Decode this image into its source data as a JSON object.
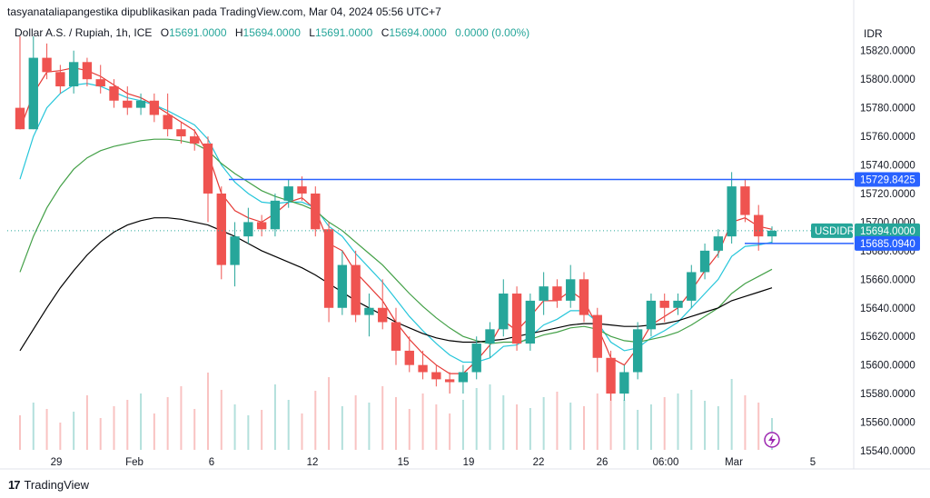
{
  "attribution": "tasyanataliapangestika dipublikasikan pada TradingView.com, Mar 04, 2024 05:56 UTC+7",
  "legend": {
    "symbol": "Dollar A.S. / Rupiah, 1h, ICE",
    "o_label": "O",
    "o_value": "15691.0000",
    "h_label": "H",
    "h_value": "15694.0000",
    "l_label": "L",
    "l_value": "15691.0000",
    "c_label": "C",
    "c_value": "15694.0000",
    "change": "0.0000 (0.00%)"
  },
  "currency": "IDR",
  "footer": {
    "brand": "TradingView",
    "logo": "tradingview-logo"
  },
  "colors": {
    "up": "#26a69a",
    "down": "#ef5350",
    "ma_red": "#e53935",
    "ma_cyan": "#26c6da",
    "ma_green": "#43a047",
    "ma_black": "#000000",
    "hline": "#2962ff"
  },
  "chart_data": {
    "type": "line",
    "title": "Dollar A.S. / Rupiah, 1h, ICE",
    "ylim": [
      15540,
      15830
    ],
    "y_ticks": [
      "15820.0000",
      "15800.0000",
      "15780.0000",
      "15760.0000",
      "15740.0000",
      "15720.0000",
      "15700.0000",
      "15680.0000",
      "15660.0000",
      "15640.0000",
      "15620.0000",
      "15600.0000",
      "15580.0000",
      "15560.0000",
      "15540.0000"
    ],
    "x_ticks": [
      "29",
      "Feb",
      "6",
      "12",
      "15",
      "19",
      "22",
      "26",
      "06:00",
      "Mar",
      "5"
    ],
    "price_labels": {
      "resistance": {
        "value": 15729.8425,
        "text": "15729.8425"
      },
      "current": {
        "name": "USDIDR",
        "value": 15694.0,
        "text": "15694.0000"
      },
      "support": {
        "value": 15685.094,
        "text": "15685.0940"
      }
    },
    "candles": [
      [
        15780,
        15830,
        15765,
        15765
      ],
      [
        15765,
        15830,
        15765,
        15815
      ],
      [
        15815,
        15825,
        15800,
        15805
      ],
      [
        15805,
        15810,
        15790,
        15795
      ],
      [
        15795,
        15820,
        15790,
        15812
      ],
      [
        15812,
        15815,
        15795,
        15800
      ],
      [
        15800,
        15810,
        15790,
        15795
      ],
      [
        15795,
        15800,
        15780,
        15785
      ],
      [
        15785,
        15795,
        15775,
        15780
      ],
      [
        15780,
        15790,
        15775,
        15785
      ],
      [
        15785,
        15790,
        15770,
        15775
      ],
      [
        15775,
        15790,
        15760,
        15765
      ],
      [
        15765,
        15770,
        15755,
        15760
      ],
      [
        15760,
        15765,
        15750,
        15755
      ],
      [
        15755,
        15760,
        15700,
        15720
      ],
      [
        15720,
        15725,
        15660,
        15670
      ],
      [
        15670,
        15700,
        15655,
        15690
      ],
      [
        15690,
        15710,
        15685,
        15700
      ],
      [
        15700,
        15705,
        15690,
        15695
      ],
      [
        15695,
        15720,
        15690,
        15715
      ],
      [
        15715,
        15730,
        15710,
        15725
      ],
      [
        15725,
        15732,
        15715,
        15720
      ],
      [
        15720,
        15725,
        15690,
        15695
      ],
      [
        15695,
        15700,
        15630,
        15640
      ],
      [
        15640,
        15680,
        15635,
        15670
      ],
      [
        15670,
        15680,
        15630,
        15635
      ],
      [
        15635,
        15650,
        15620,
        15640
      ],
      [
        15640,
        15660,
        15625,
        15630
      ],
      [
        15630,
        15640,
        15600,
        15610
      ],
      [
        15610,
        15620,
        15595,
        15600
      ],
      [
        15600,
        15610,
        15590,
        15595
      ],
      [
        15595,
        15600,
        15585,
        15590
      ],
      [
        15590,
        15595,
        15580,
        15588
      ],
      [
        15588,
        15600,
        15580,
        15595
      ],
      [
        15595,
        15620,
        15590,
        15615
      ],
      [
        15615,
        15630,
        15605,
        15625
      ],
      [
        15625,
        15660,
        15620,
        15650
      ],
      [
        15650,
        15655,
        15610,
        15615
      ],
      [
        15615,
        15650,
        15610,
        15645
      ],
      [
        15645,
        15665,
        15635,
        15655
      ],
      [
        15655,
        15660,
        15640,
        15645
      ],
      [
        15645,
        15670,
        15640,
        15660
      ],
      [
        15660,
        15665,
        15630,
        15635
      ],
      [
        15635,
        15640,
        15595,
        15605
      ],
      [
        15605,
        15610,
        15575,
        15580
      ],
      [
        15580,
        15600,
        15575,
        15595
      ],
      [
        15595,
        15630,
        15590,
        15625
      ],
      [
        15625,
        15650,
        15620,
        15645
      ],
      [
        15645,
        15650,
        15630,
        15640
      ],
      [
        15640,
        15650,
        15635,
        15645
      ],
      [
        15645,
        15670,
        15640,
        15665
      ],
      [
        15665,
        15685,
        15660,
        15680
      ],
      [
        15680,
        15695,
        15675,
        15690
      ],
      [
        15690,
        15735,
        15685,
        15725
      ],
      [
        15725,
        15730,
        15700,
        15705
      ],
      [
        15705,
        15712,
        15680,
        15690
      ],
      [
        15690,
        15697,
        15685,
        15694
      ]
    ],
    "series": [
      {
        "ma": "fast",
        "color": "#e53935",
        "values": [
          15765,
          15790,
          15805,
          15806,
          15808,
          15806,
          15802,
          15796,
          15790,
          15787,
          15782,
          15776,
          15770,
          15764,
          15748,
          15720,
          15708,
          15703,
          15700,
          15706,
          15714,
          15717,
          15709,
          15685,
          15680,
          15665,
          15655,
          15645,
          15630,
          15618,
          15608,
          15600,
          15594,
          15594,
          15603,
          15614,
          15631,
          15624,
          15634,
          15645,
          15645,
          15652,
          15645,
          15627,
          15605,
          15600,
          15612,
          15628,
          15634,
          15640,
          15652,
          15666,
          15678,
          15700,
          15703,
          15697,
          15695
        ]
      },
      {
        "ma": "mid",
        "color": "#26c6da",
        "values": [
          15730,
          15760,
          15780,
          15790,
          15796,
          15797,
          15795,
          15791,
          15787,
          15785,
          15782,
          15778,
          15773,
          15768,
          15758,
          15740,
          15728,
          15720,
          15714,
          15713,
          15714,
          15714,
          15710,
          15697,
          15690,
          15678,
          15668,
          15658,
          15646,
          15634,
          15624,
          15615,
          15607,
          15602,
          15602,
          15605,
          15613,
          15614,
          15620,
          15628,
          15632,
          15638,
          15638,
          15630,
          15616,
          15610,
          15612,
          15619,
          15624,
          15630,
          15640,
          15650,
          15660,
          15676,
          15683,
          15684,
          15686
        ]
      },
      {
        "ma": "slow",
        "color": "#43a047",
        "values": [
          15665,
          15690,
          15710,
          15725,
          15737,
          15745,
          15750,
          15753,
          15755,
          15757,
          15758,
          15758,
          15757,
          15755,
          15750,
          15741,
          15734,
          15728,
          15722,
          15718,
          15715,
          15712,
          15708,
          15700,
          15694,
          15686,
          15678,
          15670,
          15660,
          15650,
          15641,
          15633,
          15626,
          15620,
          15617,
          15615,
          15616,
          15616,
          15618,
          15621,
          15623,
          15626,
          15627,
          15625,
          15620,
          15617,
          15616,
          15618,
          15620,
          15623,
          15628,
          15634,
          15640,
          15650,
          15657,
          15662,
          15667
        ]
      },
      {
        "ma": "long",
        "color": "#000000",
        "values": [
          15610,
          15625,
          15640,
          15654,
          15666,
          15677,
          15686,
          15693,
          15698,
          15701,
          15703,
          15703,
          15702,
          15700,
          15698,
          15694,
          15690,
          15685,
          15680,
          15676,
          15672,
          15668,
          15663,
          15657,
          15651,
          15645,
          15640,
          15635,
          15630,
          15626,
          15622,
          15619,
          15617,
          15616,
          15616,
          15617,
          15618,
          15620,
          15622,
          15624,
          15626,
          15628,
          15629,
          15629,
          15628,
          15627,
          15627,
          15628,
          15629,
          15631,
          15634,
          15637,
          15640,
          15645,
          15648,
          15651,
          15654
        ]
      }
    ],
    "volume": [
      38,
      52,
      45,
      30,
      42,
      60,
      35,
      48,
      55,
      62,
      40,
      58,
      70,
      45,
      85,
      66,
      50,
      38,
      44,
      72,
      55,
      40,
      65,
      80,
      48,
      60,
      52,
      70,
      58,
      45,
      62,
      50,
      40,
      55,
      68,
      72,
      60,
      50,
      46,
      58,
      64,
      52,
      48,
      62,
      75,
      55,
      44,
      50,
      58,
      62,
      66,
      54,
      48,
      78,
      60,
      52,
      35
    ]
  }
}
